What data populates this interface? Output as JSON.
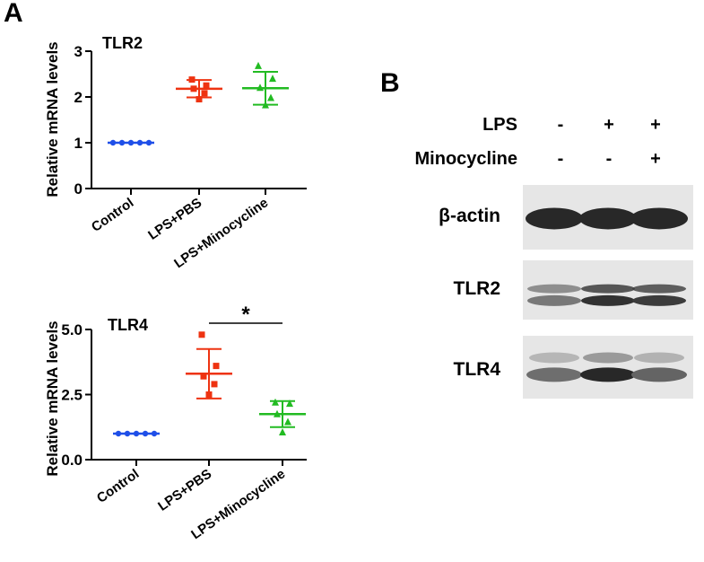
{
  "panels": {
    "a_label": "A",
    "b_label": "B"
  },
  "chart_data": [
    {
      "type": "scatter",
      "title": "TLR2",
      "ylabel": "Relative mRNA levels",
      "xlabel": "",
      "categories": [
        "Control",
        "LPS+PBS",
        "LPS+Minocycline"
      ],
      "ylim": [
        0,
        3
      ],
      "yticks": [
        "0",
        "1",
        "2",
        "3"
      ],
      "ytick_values": [
        0,
        1,
        2,
        3
      ],
      "colors": [
        "#1f4fe8",
        "#ee3311",
        "#22bb22"
      ],
      "markers": [
        "circle",
        "square",
        "triangle"
      ],
      "points": [
        [
          1.0,
          1.0,
          1.0,
          1.0,
          1.0
        ],
        [
          2.38,
          2.25,
          2.18,
          2.08,
          1.95
        ],
        [
          2.68,
          2.4,
          2.2,
          1.98,
          1.82
        ]
      ],
      "mean": [
        1.0,
        2.18,
        2.19
      ],
      "sd": [
        0.0,
        0.19,
        0.36
      ],
      "significance": null
    },
    {
      "type": "scatter",
      "title": "TLR4",
      "ylabel": "Relative mRNA levels",
      "xlabel": "",
      "categories": [
        "Control",
        "LPS+PBS",
        "LPS+Minocycline"
      ],
      "ylim": [
        0,
        5
      ],
      "yticks": [
        "0.0",
        "2.5",
        "5.0"
      ],
      "ytick_values": [
        0,
        2.5,
        5
      ],
      "colors": [
        "#1f4fe8",
        "#ee3311",
        "#22bb22"
      ],
      "markers": [
        "circle",
        "square",
        "triangle"
      ],
      "points": [
        [
          1.0,
          1.0,
          1.0,
          1.0,
          1.0
        ],
        [
          4.8,
          3.6,
          3.2,
          2.9,
          2.5
        ],
        [
          2.2,
          2.15,
          1.75,
          1.45,
          1.05
        ]
      ],
      "mean": [
        1.0,
        3.3,
        1.75
      ],
      "sd": [
        0.0,
        0.95,
        0.5
      ],
      "significance": {
        "from": 1,
        "to": 2,
        "label": "*"
      }
    }
  ],
  "blot": {
    "treatments": [
      {
        "label": "LPS",
        "signs": [
          "-",
          "+",
          "+"
        ]
      },
      {
        "label": "Minocycline",
        "signs": [
          "-",
          "-",
          "+"
        ]
      }
    ],
    "rows": [
      {
        "label": "β-actin",
        "lane_intensity": [
          0.9,
          0.9,
          0.9
        ]
      },
      {
        "label": "TLR2",
        "lane_intensity": [
          0.5,
          0.85,
          0.8
        ]
      },
      {
        "label": "TLR4",
        "lane_intensity": [
          0.55,
          0.9,
          0.6
        ]
      }
    ]
  }
}
